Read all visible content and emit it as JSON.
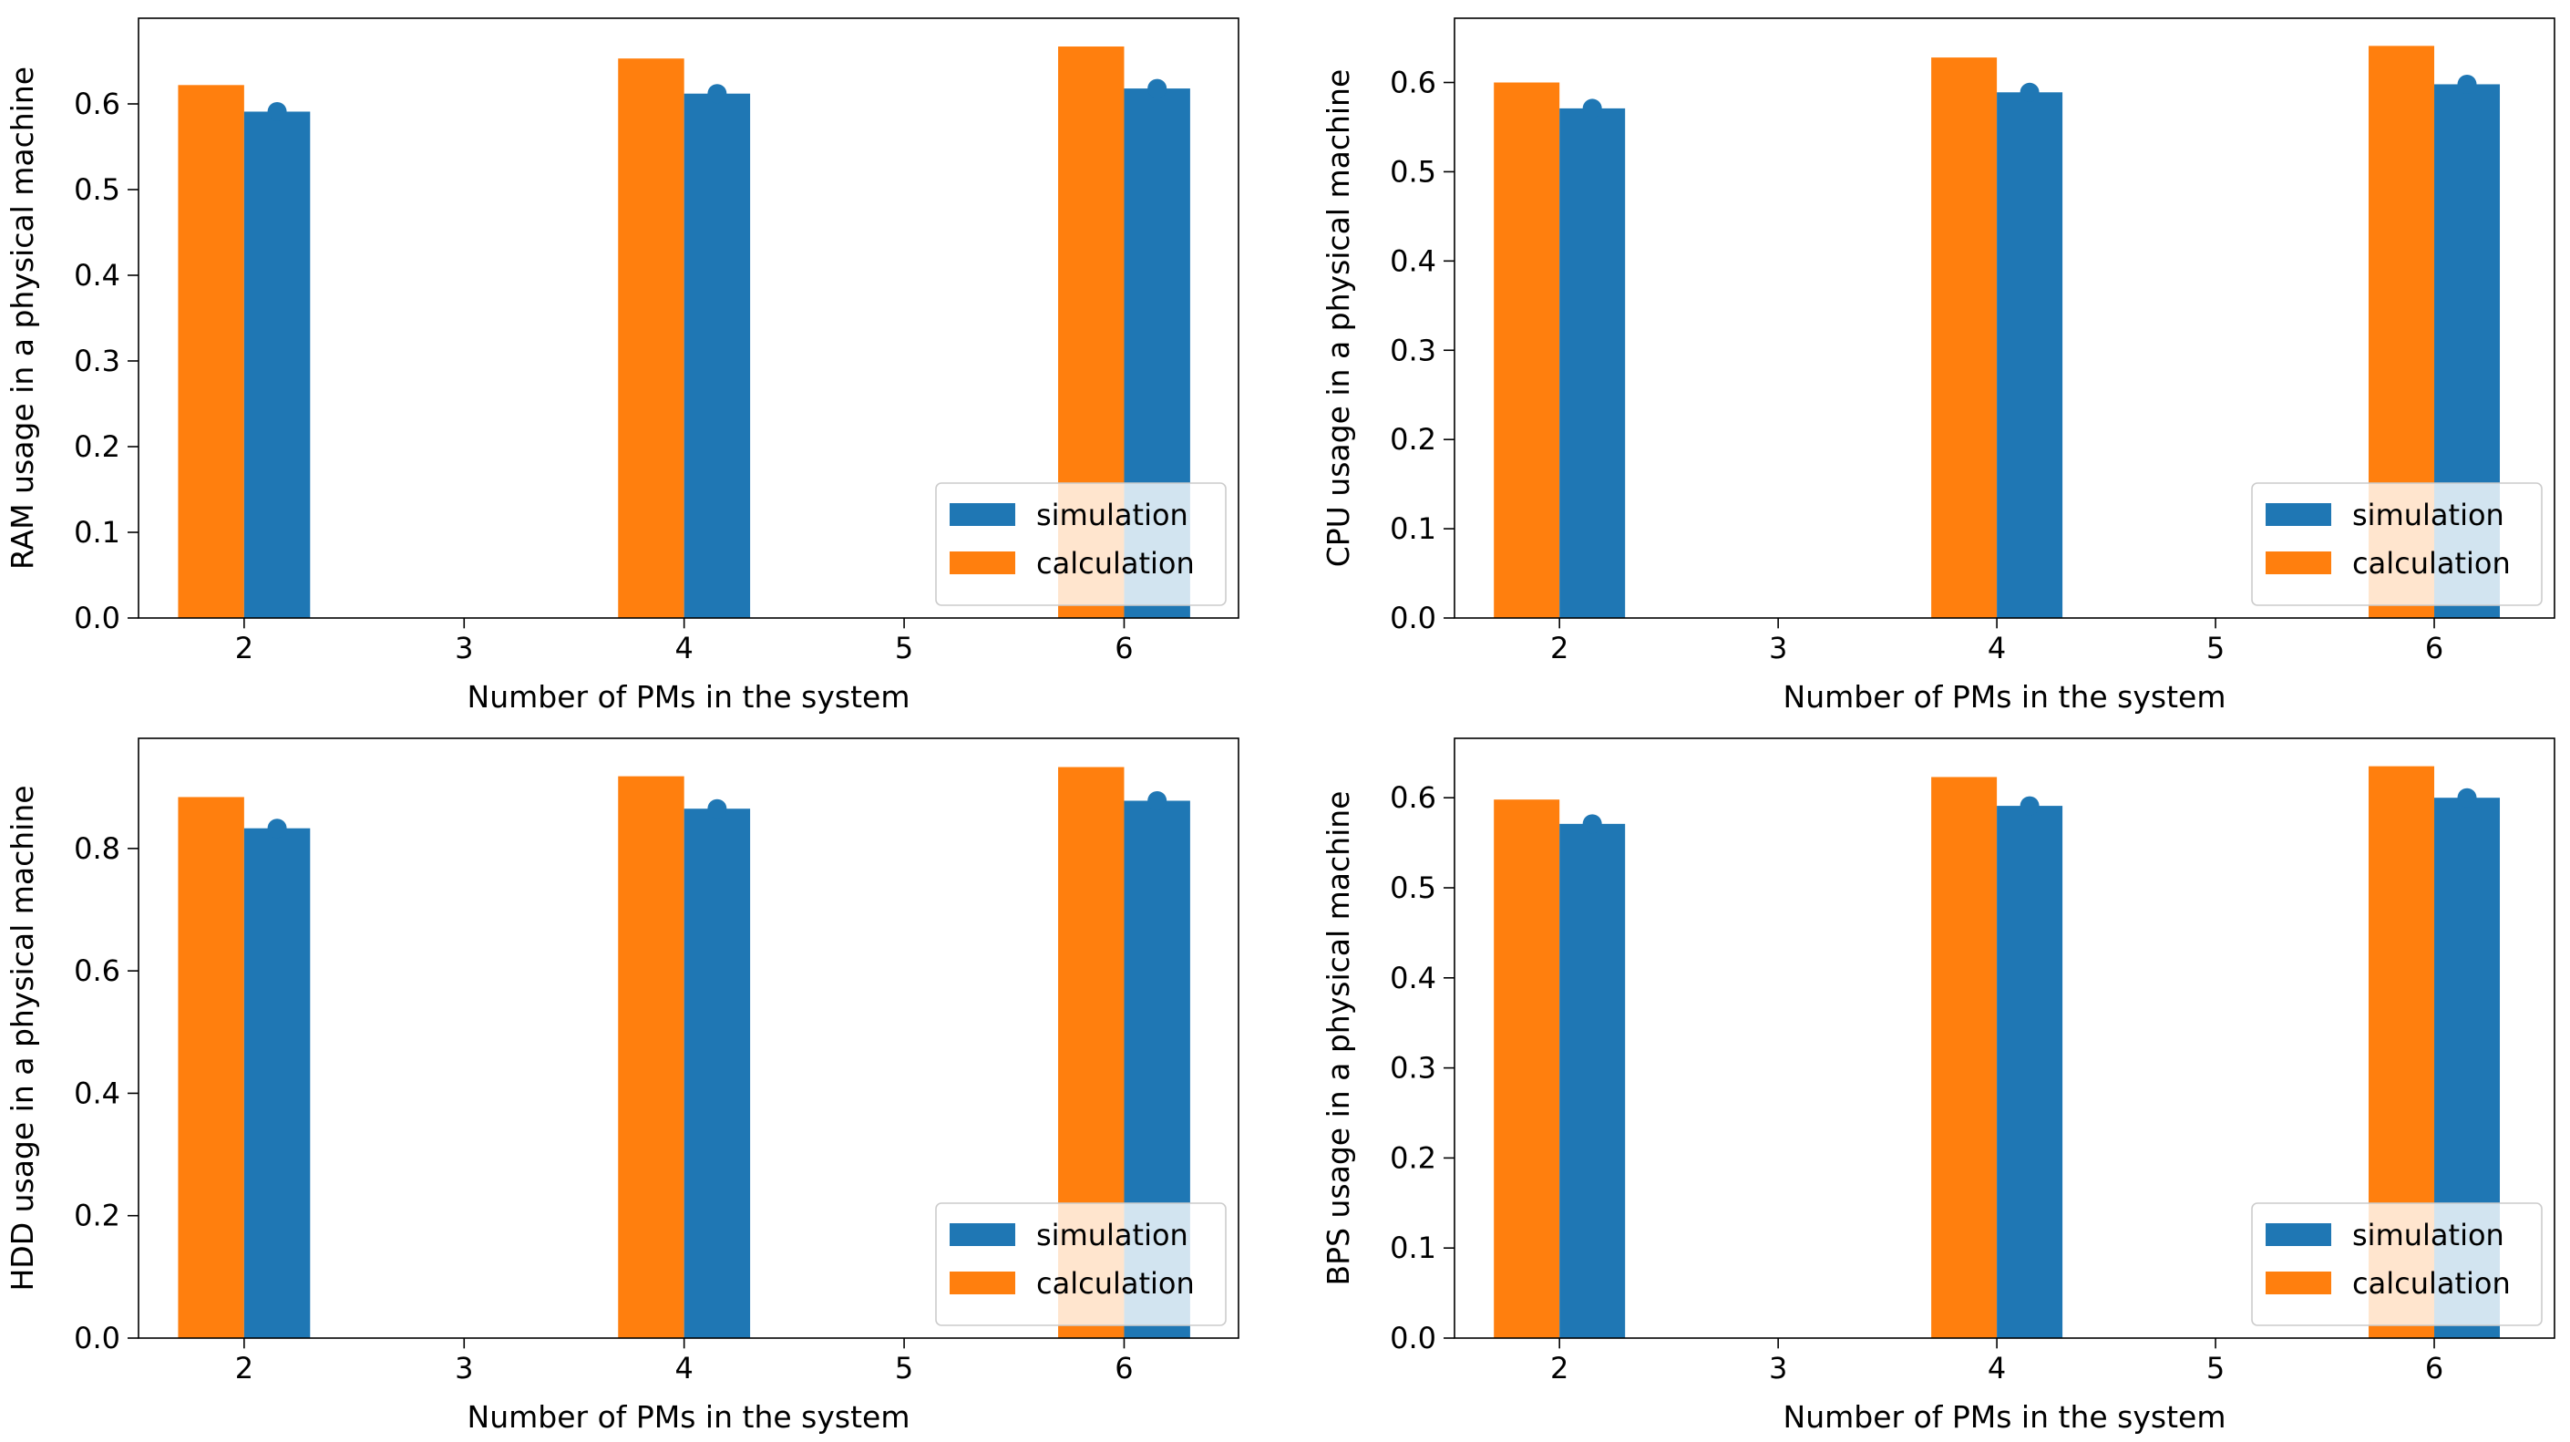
{
  "colors": {
    "simulation": "#1f77b4",
    "calculation": "#ff7f0e"
  },
  "legend": {
    "entries": [
      "simulation",
      "calculation"
    ],
    "placement": "lower-right"
  },
  "chart_data": [
    {
      "type": "bar",
      "xlabel": "Number of PMs in the system",
      "ylabel": "RAM usage in a physical machine",
      "xticks": [
        "2",
        "3",
        "4",
        "5",
        "6"
      ],
      "xlim": [
        1.52,
        6.52
      ],
      "ylim": [
        0,
        0.7
      ],
      "yticks": [
        "0.0",
        "0.1",
        "0.2",
        "0.3",
        "0.4",
        "0.5",
        "0.6"
      ],
      "yticks_values": [
        0,
        0.1,
        0.2,
        0.3,
        0.4,
        0.5,
        0.6
      ],
      "x": [
        2,
        4,
        6
      ],
      "series": [
        {
          "name": "calculation",
          "values": [
            0.622,
            0.653,
            0.667
          ]
        },
        {
          "name": "simulation",
          "values": [
            0.591,
            0.612,
            0.618
          ]
        }
      ]
    },
    {
      "type": "bar",
      "xlabel": "Number of PMs in the system",
      "ylabel": "CPU usage in a physical machine",
      "xticks": [
        "2",
        "3",
        "4",
        "5",
        "6"
      ],
      "xlim": [
        1.52,
        6.55
      ],
      "ylim": [
        0,
        0.672
      ],
      "yticks": [
        "0.0",
        "0.1",
        "0.2",
        "0.3",
        "0.4",
        "0.5",
        "0.6"
      ],
      "yticks_values": [
        0,
        0.1,
        0.2,
        0.3,
        0.4,
        0.5,
        0.6
      ],
      "x": [
        2,
        4,
        6
      ],
      "series": [
        {
          "name": "calculation",
          "values": [
            0.6,
            0.628,
            0.641
          ]
        },
        {
          "name": "simulation",
          "values": [
            0.571,
            0.589,
            0.598
          ]
        }
      ]
    },
    {
      "type": "bar",
      "xlabel": "Number of PMs in the system",
      "ylabel": "HDD usage in a physical machine",
      "xticks": [
        "2",
        "3",
        "4",
        "5",
        "6"
      ],
      "xlim": [
        1.52,
        6.52
      ],
      "ylim": [
        0,
        0.98
      ],
      "yticks": [
        "0.0",
        "0.2",
        "0.4",
        "0.6",
        "0.8"
      ],
      "yticks_values": [
        0,
        0.2,
        0.4,
        0.6,
        0.8
      ],
      "x": [
        2,
        4,
        6
      ],
      "series": [
        {
          "name": "calculation",
          "values": [
            0.884,
            0.918,
            0.933
          ]
        },
        {
          "name": "simulation",
          "values": [
            0.833,
            0.865,
            0.878
          ]
        }
      ]
    },
    {
      "type": "bar",
      "xlabel": "Number of PMs in the system",
      "ylabel": "BPS usage in a physical machine",
      "xticks": [
        "2",
        "3",
        "4",
        "5",
        "6"
      ],
      "xlim": [
        1.52,
        6.55
      ],
      "ylim": [
        0,
        0.666
      ],
      "yticks": [
        "0.0",
        "0.1",
        "0.2",
        "0.3",
        "0.4",
        "0.5",
        "0.6"
      ],
      "yticks_values": [
        0,
        0.1,
        0.2,
        0.3,
        0.4,
        0.5,
        0.6
      ],
      "x": [
        2,
        4,
        6
      ],
      "series": [
        {
          "name": "calculation",
          "values": [
            0.598,
            0.623,
            0.635
          ]
        },
        {
          "name": "simulation",
          "values": [
            0.571,
            0.591,
            0.6
          ]
        }
      ]
    }
  ]
}
